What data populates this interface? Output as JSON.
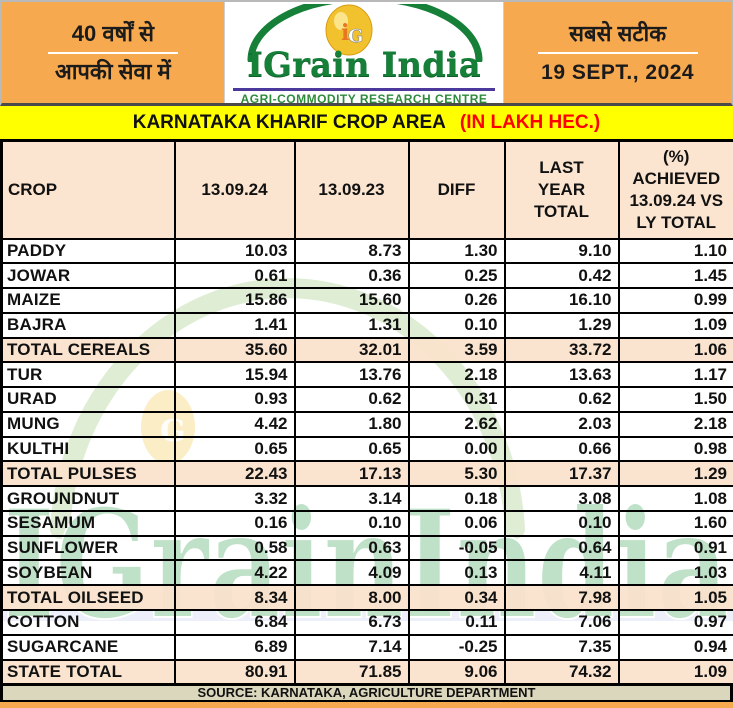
{
  "header": {
    "left": {
      "line1": "40 वर्षों से",
      "line2": "आपकी सेवा में"
    },
    "brand": {
      "name": "IGrain India",
      "tagline": "AGRI-COMMODITY RESEARCH CENTRE",
      "monogram": "iG",
      "brand_green": "#168039",
      "egg_gold": "#F2C22E"
    },
    "right": {
      "tagline": "सबसे सटीक",
      "date": "19 SEPT., 2024"
    }
  },
  "title_bar": {
    "title": "KARNATAKA KHARIF CROP AREA",
    "unit": "(IN LAKH HEC.)"
  },
  "table": {
    "columns": [
      "CROP",
      "13.09.24",
      "13.09.23",
      "DIFF",
      "LAST\nYEAR\nTOTAL",
      "(%)\nACHIEVED\n13.09.24 VS\nLY TOTAL"
    ],
    "rows": [
      {
        "crop": "PADDY",
        "cur": "10.03",
        "prev": "8.73",
        "diff": "1.30",
        "diff_color": "green",
        "ly": "9.10",
        "pct": "1.10",
        "total": false
      },
      {
        "crop": "JOWAR",
        "cur": "0.61",
        "prev": "0.36",
        "diff": "0.25",
        "diff_color": "green",
        "ly": "0.42",
        "pct": "1.45",
        "total": false
      },
      {
        "crop": "MAIZE",
        "cur": "15.86",
        "prev": "15.60",
        "diff": "0.26",
        "diff_color": "green",
        "ly": "16.10",
        "pct": "0.99",
        "total": false
      },
      {
        "crop": "BAJRA",
        "cur": "1.41",
        "prev": "1.31",
        "diff": "0.10",
        "diff_color": "green",
        "ly": "1.29",
        "pct": "1.09",
        "total": false
      },
      {
        "crop": "TOTAL CEREALS",
        "cur": "35.60",
        "prev": "32.01",
        "diff": "3.59",
        "diff_color": "green",
        "ly": "33.72",
        "pct": "1.06",
        "total": true
      },
      {
        "crop": "TUR",
        "cur": "15.94",
        "prev": "13.76",
        "diff": "2.18",
        "diff_color": "green",
        "ly": "13.63",
        "pct": "1.17",
        "total": false
      },
      {
        "crop": "URAD",
        "cur": "0.93",
        "prev": "0.62",
        "diff": "0.31",
        "diff_color": "green",
        "ly": "0.62",
        "pct": "1.50",
        "total": false
      },
      {
        "crop": "MUNG",
        "cur": "4.42",
        "prev": "1.80",
        "diff": "2.62",
        "diff_color": "green",
        "ly": "2.03",
        "pct": "2.18",
        "total": false
      },
      {
        "crop": "KULTHI",
        "cur": "0.65",
        "prev": "0.65",
        "diff": "0.00",
        "diff_color": "green",
        "ly": "0.66",
        "pct": "0.98",
        "total": false
      },
      {
        "crop": "TOTAL PULSES",
        "cur": "22.43",
        "prev": "17.13",
        "diff": "5.30",
        "diff_color": "green",
        "ly": "17.37",
        "pct": "1.29",
        "total": true
      },
      {
        "crop": "GROUNDNUT",
        "cur": "3.32",
        "prev": "3.14",
        "diff": "0.18",
        "diff_color": "red",
        "ly": "3.08",
        "pct": "1.08",
        "total": false
      },
      {
        "crop": "SESAMUM",
        "cur": "0.16",
        "prev": "0.10",
        "diff": "0.06",
        "diff_color": "green",
        "ly": "0.10",
        "pct": "1.60",
        "total": false
      },
      {
        "crop": "SUNFLOWER",
        "cur": "0.58",
        "prev": "0.63",
        "diff": "-0.05",
        "diff_color": "red",
        "ly": "0.64",
        "pct": "0.91",
        "total": false
      },
      {
        "crop": "SOYBEAN",
        "cur": "4.22",
        "prev": "4.09",
        "diff": "0.13",
        "diff_color": "green",
        "ly": "4.11",
        "pct": "1.03",
        "total": false
      },
      {
        "crop": "TOTAL OILSEED",
        "cur": "8.34",
        "prev": "8.00",
        "diff": "0.34",
        "diff_color": "green",
        "ly": "7.98",
        "pct": "1.05",
        "total": true
      },
      {
        "crop": "COTTON",
        "cur": "6.84",
        "prev": "6.73",
        "diff": "0.11",
        "diff_color": "green",
        "ly": "7.06",
        "pct": "0.97",
        "total": false
      },
      {
        "crop": "SUGARCANE",
        "cur": "6.89",
        "prev": "7.14",
        "diff": "-0.25",
        "diff_color": "red",
        "ly": "7.35",
        "pct": "0.94",
        "total": false
      },
      {
        "crop": "STATE TOTAL",
        "cur": "80.91",
        "prev": "71.85",
        "diff": "9.06",
        "diff_color": "green",
        "ly": "74.32",
        "pct": "1.09",
        "total": true
      }
    ]
  },
  "footer": {
    "source": "SOURCE: KARNATAKA, AGRICULTURE DEPARTMENT"
  },
  "watermark": {
    "text": "IGrainIndia"
  },
  "colors": {
    "band_orange": "#F6A94F",
    "title_yellow": "#FFFF00",
    "header_peach": "#FBE5D1",
    "total_row_peach": "#FAE2CC",
    "positive_green": "#0DA351",
    "negative_red": "#EE1111",
    "source_tan": "#DBD7BD"
  }
}
